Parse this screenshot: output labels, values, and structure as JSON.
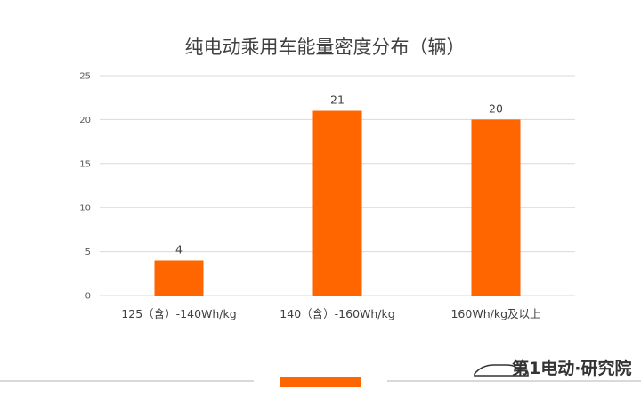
{
  "chart_data": {
    "type": "bar",
    "title": "纯电动乘用车能量密度分布（辆）",
    "categories": [
      "125（含）-140Wh/kg",
      "140（含）-160Wh/kg",
      "160Wh/kg及以上"
    ],
    "values": [
      4,
      21,
      20
    ],
    "data_labels": [
      "4",
      "21",
      "20"
    ],
    "y_ticks": [
      "0",
      "5",
      "10",
      "15",
      "20",
      "25"
    ],
    "ylim": [
      0,
      25
    ],
    "grid": true,
    "bar_color": "#ff6600"
  },
  "footer": {
    "logo_text": "第1电动·研究院",
    "accent_color": "#ff6600",
    "line_color": "#d9d9d9"
  }
}
